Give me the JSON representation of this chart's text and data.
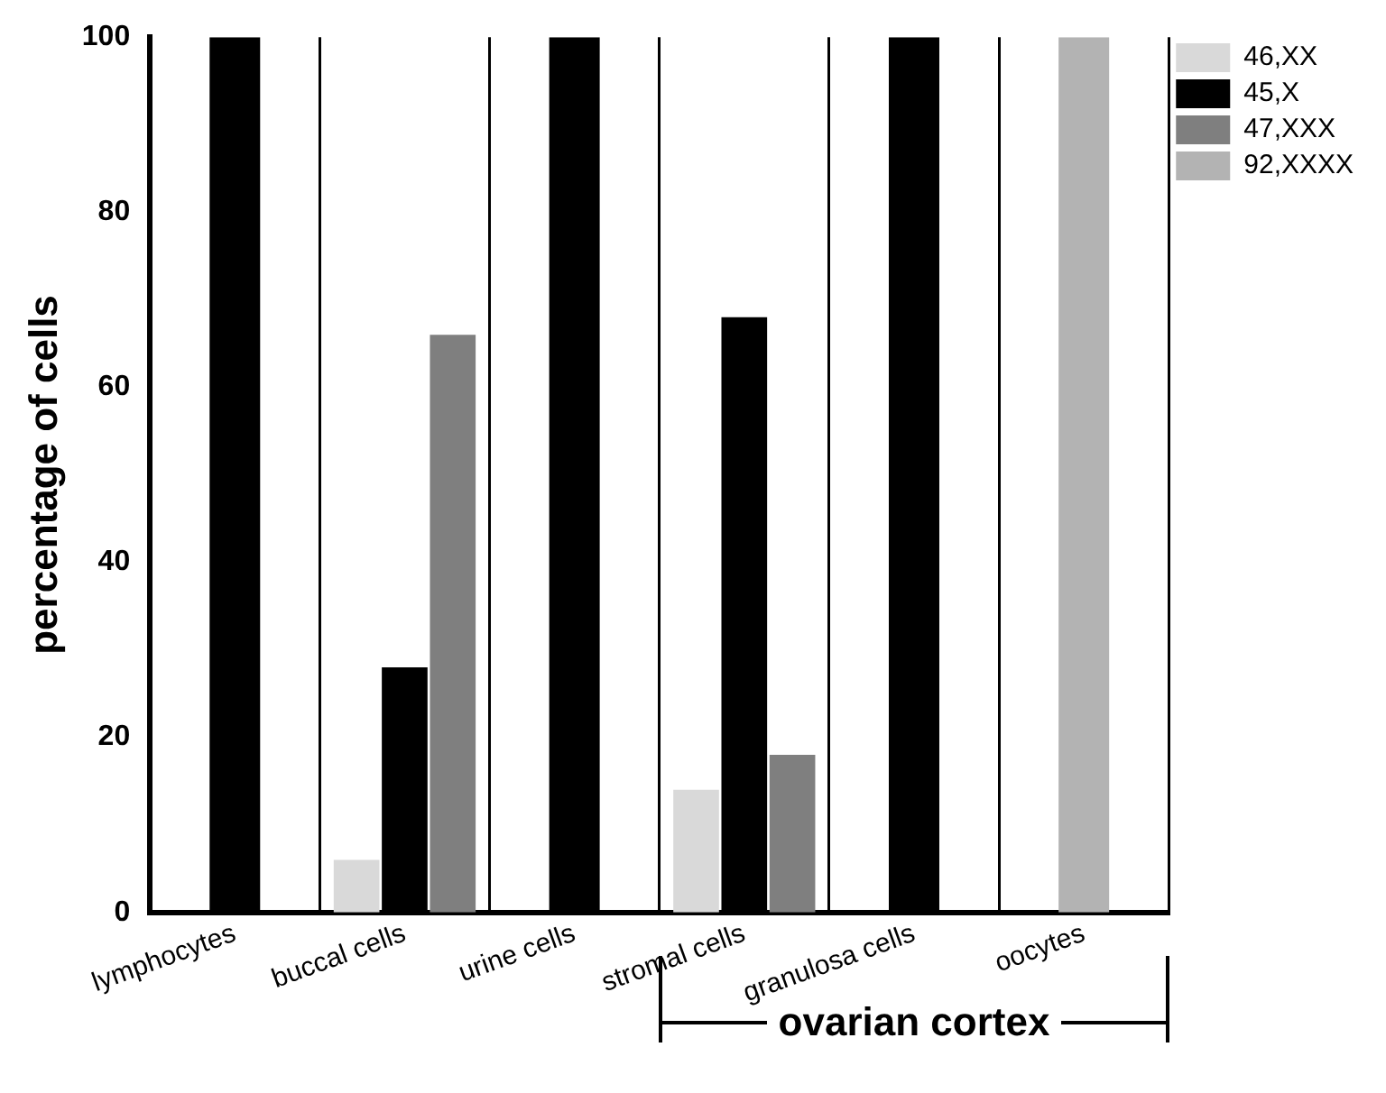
{
  "chart_data": {
    "type": "bar",
    "ylabel": "percentage of cells",
    "categories": [
      "lymphocytes",
      "buccal cells",
      "urine cells",
      "stromal cells",
      "granulosa cells",
      "oocytes"
    ],
    "series": [
      {
        "name": "46,XX",
        "color": "#d9d9d9",
        "values": [
          null,
          6,
          null,
          14,
          null,
          null
        ]
      },
      {
        "name": "45,X",
        "color": "#000000",
        "values": [
          100,
          28,
          100,
          68,
          100,
          null
        ]
      },
      {
        "name": "47,XXX",
        "color": "#7f7f7f",
        "values": [
          null,
          66,
          null,
          18,
          null,
          null
        ]
      },
      {
        "name": "92,XXXX",
        "color": "#b3b3b3",
        "values": [
          null,
          null,
          null,
          null,
          null,
          100
        ]
      }
    ],
    "ylim": [
      0,
      100
    ],
    "yticks": [
      0,
      20,
      40,
      60,
      80,
      100
    ],
    "grid": "x",
    "legend": "top right",
    "annotations": [
      "ovarian cortex"
    ]
  }
}
